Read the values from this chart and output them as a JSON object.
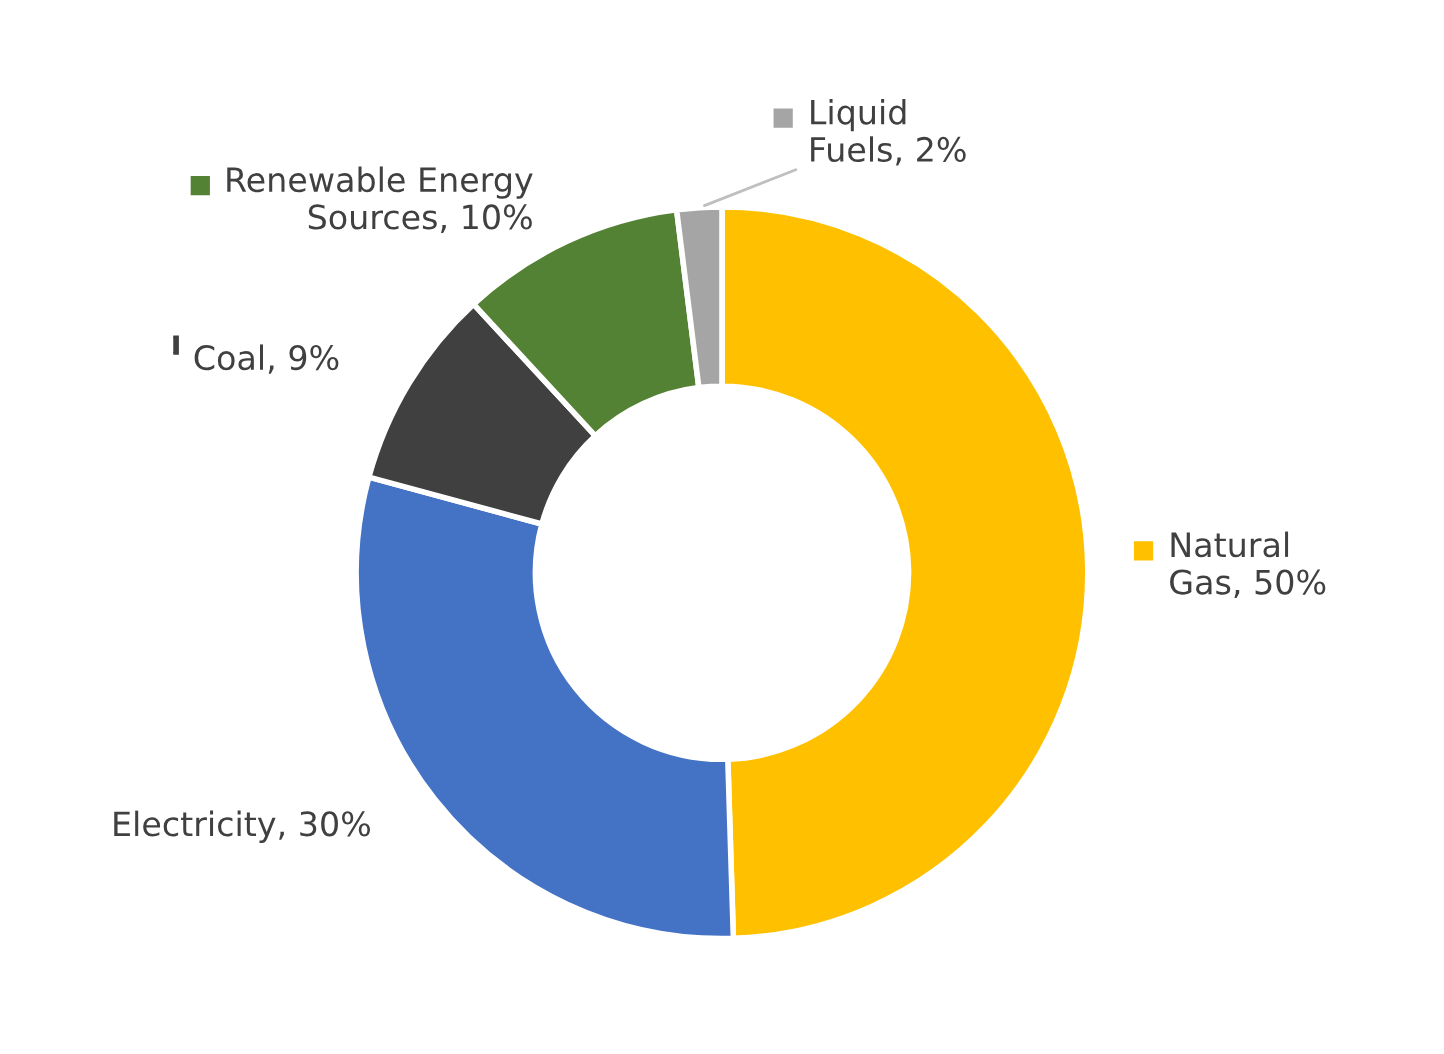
{
  "chart_data": {
    "type": "donut",
    "categories": [
      "Natural\nGas",
      "Electricity",
      "Coal",
      "Renewable Energy\nSources",
      "Liquid\nFuels"
    ],
    "values": [
      50,
      30,
      9,
      10,
      2
    ],
    "value_labels": [
      "50%",
      "30%",
      "9%",
      "10%",
      "2%"
    ],
    "colors": [
      "#ffc000",
      "#4472c4",
      "#404040",
      "#548235",
      "#a5a5a5"
    ],
    "legend": true
  }
}
